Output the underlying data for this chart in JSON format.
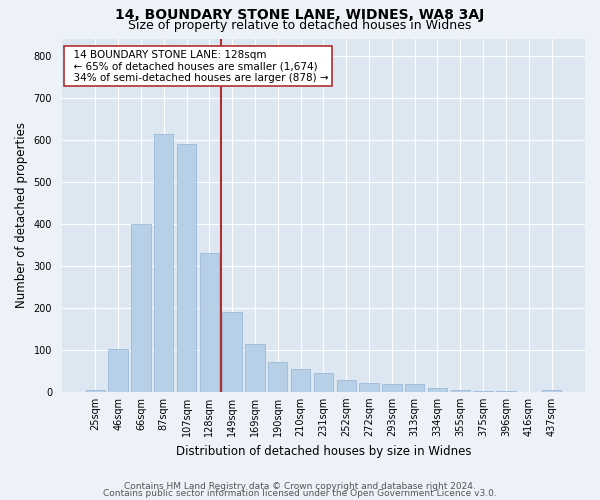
{
  "title": "14, BOUNDARY STONE LANE, WIDNES, WA8 3AJ",
  "subtitle": "Size of property relative to detached houses in Widnes",
  "xlabel": "Distribution of detached houses by size in Widnes",
  "ylabel": "Number of detached properties",
  "bar_labels": [
    "25sqm",
    "46sqm",
    "66sqm",
    "87sqm",
    "107sqm",
    "128sqm",
    "149sqm",
    "169sqm",
    "190sqm",
    "210sqm",
    "231sqm",
    "252sqm",
    "272sqm",
    "293sqm",
    "313sqm",
    "334sqm",
    "355sqm",
    "375sqm",
    "396sqm",
    "416sqm",
    "437sqm"
  ],
  "bar_values": [
    5,
    103,
    400,
    614,
    590,
    330,
    190,
    115,
    70,
    55,
    45,
    28,
    20,
    18,
    18,
    10,
    5,
    2,
    2,
    0,
    5
  ],
  "bar_color": "#b8cfe8",
  "bar_edge_color": "#96b4d4",
  "vline_x": 5.5,
  "vline_color": "#b03030",
  "annotation_text": "  14 BOUNDARY STONE LANE: 128sqm\n  ← 65% of detached houses are smaller (1,674)\n  34% of semi-detached houses are larger (878) →",
  "annotation_box_color": "#ffffff",
  "annotation_box_edge_color": "#b03030",
  "ylim": [
    0,
    840
  ],
  "yticks": [
    0,
    100,
    200,
    300,
    400,
    500,
    600,
    700,
    800
  ],
  "footer1": "Contains HM Land Registry data © Crown copyright and database right 2024.",
  "footer2": "Contains public sector information licensed under the Open Government Licence v3.0.",
  "bg_color": "#edf2f8",
  "plot_bg_color": "#dce7f2",
  "grid_color": "#ffffff",
  "title_fontsize": 10,
  "subtitle_fontsize": 9,
  "axis_label_fontsize": 8.5,
  "tick_fontsize": 7,
  "annotation_fontsize": 7.5,
  "footer_fontsize": 6.5
}
